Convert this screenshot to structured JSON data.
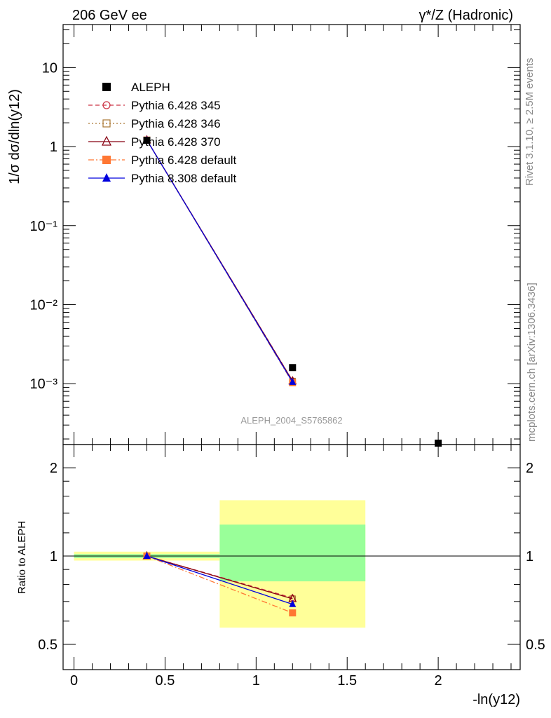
{
  "header": {
    "left": "206 GeV ee",
    "right": "γ*/Z (Hadronic)"
  },
  "side_text": {
    "rivet": "Rivet 3.1.10, ≥ 2.5M events",
    "site": "mcplots.cern.ch [arXiv:1306.3436]"
  },
  "colors": {
    "aleph": "#000000",
    "p345": "#cc3344",
    "p346": "#aa7733",
    "p370": "#880011",
    "p6def": "#ff7733",
    "p8def": "#0000dd",
    "band_inner": "#99ff99",
    "band_outer": "#ffff99"
  },
  "chart_data": [
    {
      "type": "scatter",
      "title": "",
      "watermark": "ALEPH_2004_S5765862",
      "ylabel": "1/σ  dσ/dln(y12)",
      "xlabel": "-ln(y12)",
      "yscale": "log",
      "xlim": [
        -0.06,
        2.45
      ],
      "ylim": [
        0.00017,
        35
      ],
      "x_ticks": [
        0,
        0.5,
        1,
        1.5,
        2
      ],
      "y_ticks": [
        "10⁻³",
        "10⁻²",
        "10⁻¹",
        "1",
        "10"
      ],
      "legend_position": "top-left",
      "series": [
        {
          "name": "ALEPH",
          "marker": "filled-square",
          "x": [
            0.4,
            1.2,
            2.0
          ],
          "y": [
            1.2,
            0.0016,
            0.00017
          ]
        },
        {
          "name": "Pythia 6.428 345",
          "line": "dashed",
          "marker": "open-circle",
          "x": [
            0.4,
            1.2
          ],
          "y": [
            1.21,
            0.00109
          ]
        },
        {
          "name": "Pythia 6.428 346",
          "line": "dotted",
          "marker": "open-square",
          "x": [
            0.4,
            1.2
          ],
          "y": [
            1.21,
            0.00108
          ]
        },
        {
          "name": "Pythia 6.428 370",
          "line": "solid",
          "marker": "open-triangle",
          "x": [
            0.4,
            1.2
          ],
          "y": [
            1.21,
            0.00108
          ]
        },
        {
          "name": "Pythia 6.428 default",
          "line": "dashdot",
          "marker": "filled-square",
          "x": [
            0.4,
            1.2
          ],
          "y": [
            1.21,
            0.00103
          ]
        },
        {
          "name": "Pythia 8.308 default",
          "line": "solid",
          "marker": "filled-triangle",
          "x": [
            0.4,
            1.2
          ],
          "y": [
            1.21,
            0.00105
          ]
        }
      ]
    },
    {
      "type": "scatter",
      "ylabel": "Ratio to ALEPH",
      "xlabel": "-ln(y12)",
      "yscale": "log",
      "xlim": [
        -0.06,
        2.45
      ],
      "ylim": [
        0.41,
        2.4
      ],
      "y_ticks": [
        0.5,
        1,
        2
      ],
      "bands": [
        {
          "x": [
            0,
            0.8
          ],
          "inner": [
            0.985,
            1.015
          ],
          "outer": [
            0.965,
            1.035
          ]
        },
        {
          "x": [
            0.8,
            1.6
          ],
          "inner": [
            0.82,
            1.28
          ],
          "outer": [
            0.57,
            1.55
          ]
        }
      ],
      "series": [
        {
          "name": "Pythia 6.428 345",
          "x": [
            0.4,
            1.2
          ],
          "y": [
            1.0,
            0.72
          ]
        },
        {
          "name": "Pythia 6.428 346",
          "x": [
            0.4,
            1.2
          ],
          "y": [
            1.0,
            0.715
          ]
        },
        {
          "name": "Pythia 6.428 370",
          "x": [
            0.4,
            1.2
          ],
          "y": [
            1.0,
            0.715
          ]
        },
        {
          "name": "Pythia 6.428 default",
          "x": [
            0.4,
            1.2
          ],
          "y": [
            1.0,
            0.64
          ]
        },
        {
          "name": "Pythia 8.308 default",
          "x": [
            0.4,
            1.2
          ],
          "y": [
            1.0,
            0.685
          ]
        }
      ]
    }
  ]
}
